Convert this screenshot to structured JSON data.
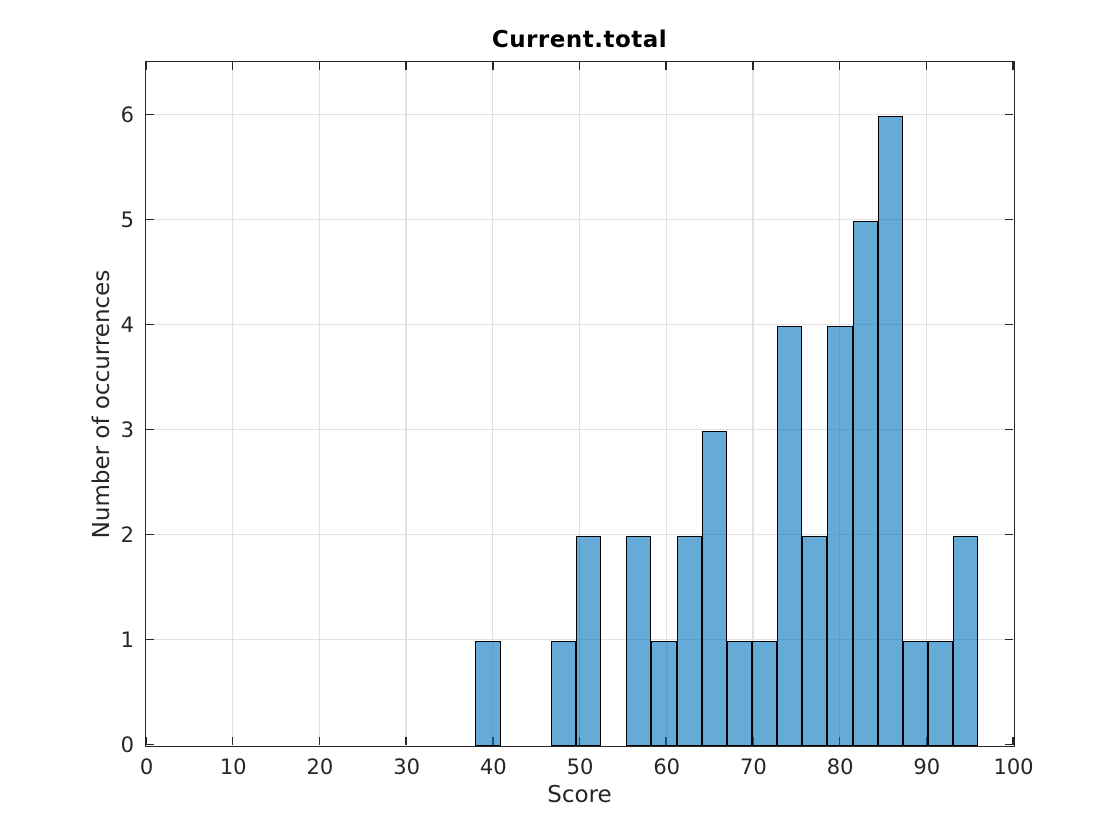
{
  "chart_data": {
    "type": "bar",
    "subtype": "histogram",
    "title": "Current.total",
    "xlabel": "Score",
    "ylabel": "Number of occurrences",
    "xlim": [
      0,
      100
    ],
    "ylim": [
      0,
      6.5
    ],
    "xticks": [
      0,
      10,
      20,
      30,
      40,
      50,
      60,
      70,
      80,
      90,
      100
    ],
    "yticks": [
      0,
      1,
      2,
      3,
      4,
      5,
      6
    ],
    "grid": true,
    "legend_position": "none",
    "bin_edges": [
      38,
      40.9,
      43.8,
      46.7,
      49.6,
      52.5,
      55.4,
      58.3,
      61.2,
      64.1,
      67,
      69.9,
      72.8,
      75.7,
      78.6,
      81.5,
      84.4,
      87.3,
      90.2,
      93.1,
      96
    ],
    "counts": [
      1,
      0,
      0,
      1,
      2,
      0,
      2,
      1,
      2,
      3,
      1,
      1,
      4,
      2,
      4,
      5,
      6,
      1,
      1,
      2
    ],
    "colors": {
      "bar_face": "#0072BD",
      "bar_face_alpha": 0.6,
      "bar_face_on_white": "#66AAD7",
      "bar_edge": "#000000",
      "grid": "#E2E2E2",
      "axis": "#262626",
      "tick_label": "#262626",
      "title": "#000000",
      "background": "#FFFFFF"
    }
  }
}
